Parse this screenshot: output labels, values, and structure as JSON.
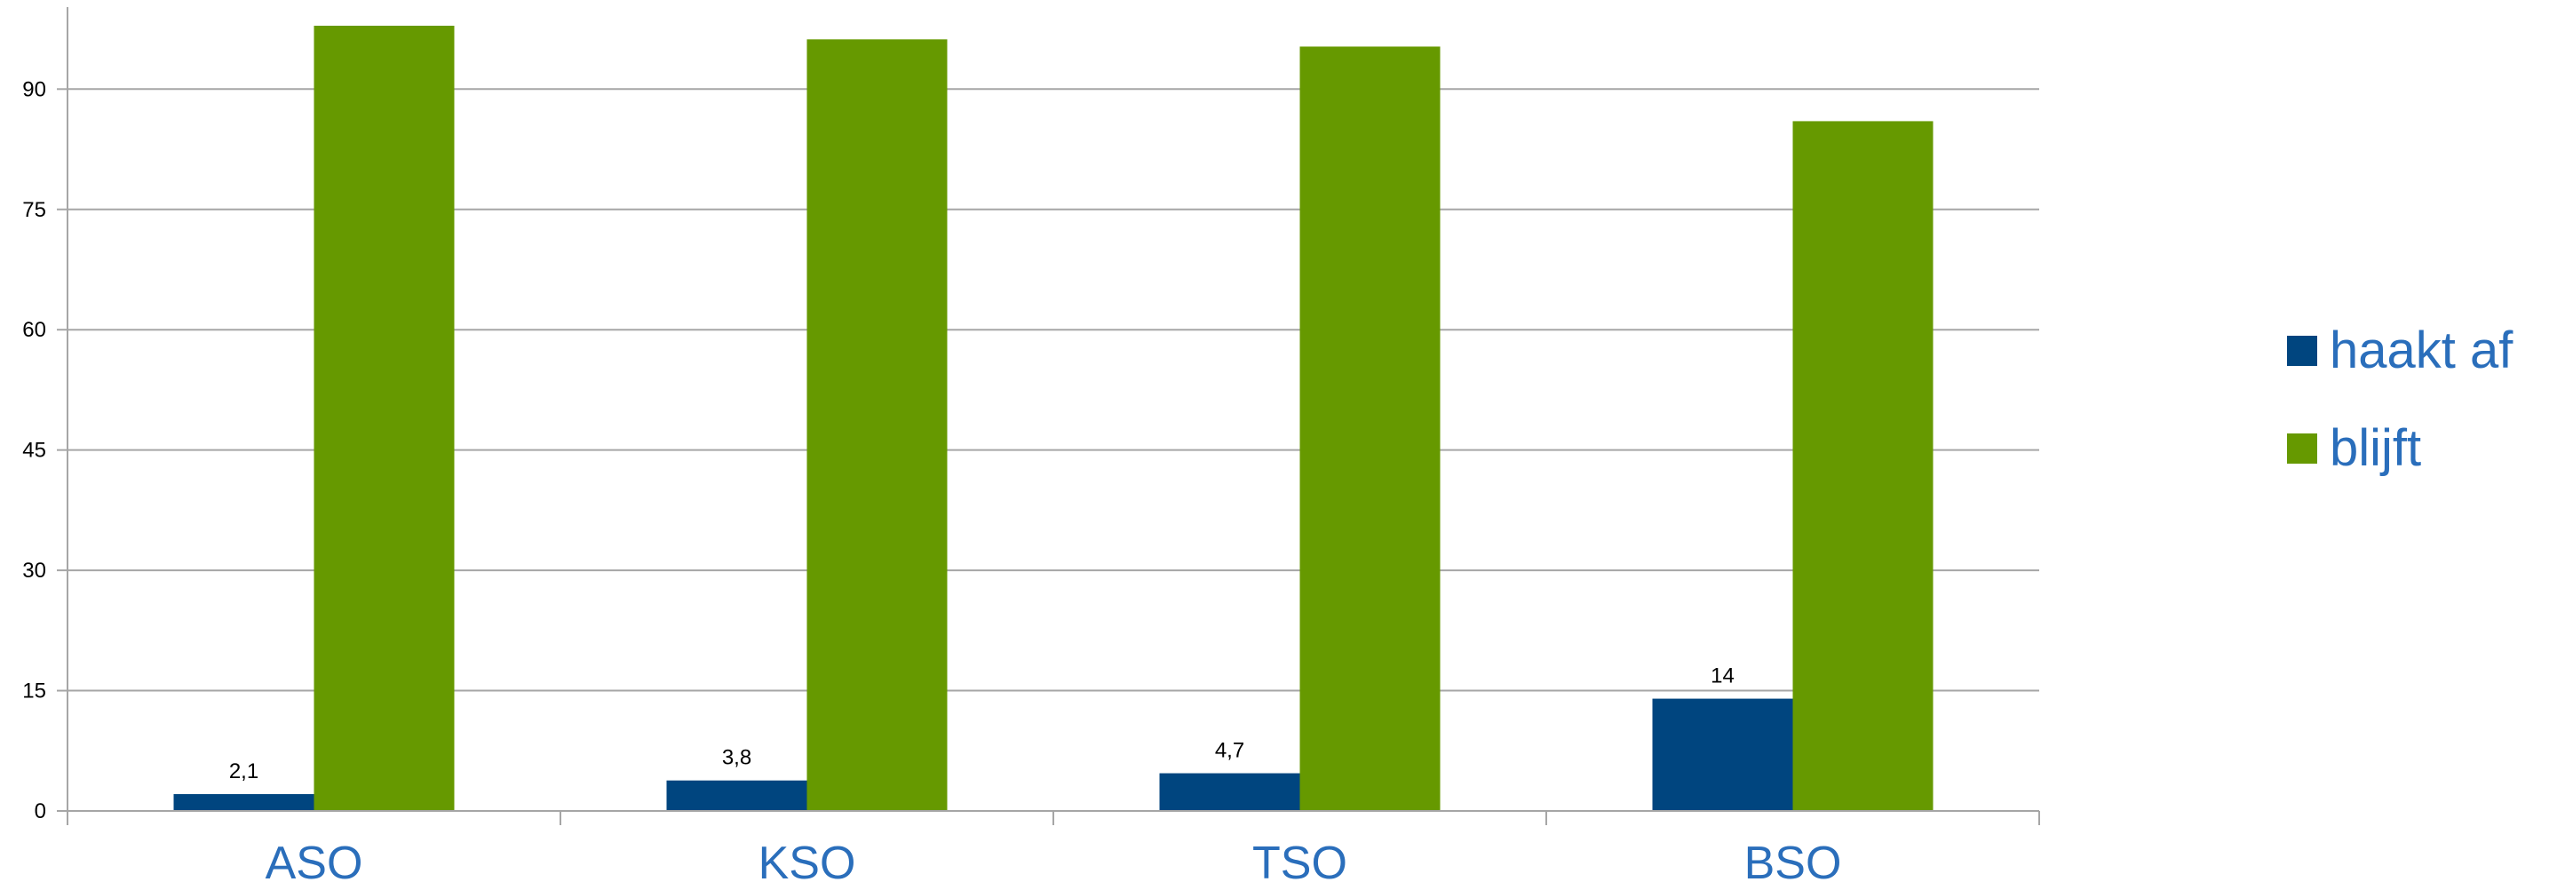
{
  "chart_data": {
    "type": "bar",
    "categories": [
      "ASO",
      "KSO",
      "TSO",
      "BSO"
    ],
    "series": [
      {
        "name": "haakt af",
        "values": [
          2.1,
          3.8,
          4.7,
          14
        ],
        "data_labels": [
          "2,1",
          "3,8",
          "4,7",
          "14"
        ],
        "color": "#00457f"
      },
      {
        "name": "blijft",
        "values": [
          97.9,
          96.2,
          95.3,
          86
        ],
        "color": "#669900"
      }
    ],
    "title": "",
    "xlabel": "",
    "ylabel": "",
    "ylim": [
      0,
      100
    ],
    "yticks": [
      0,
      15,
      30,
      45,
      60,
      75,
      90
    ],
    "grid": true,
    "legend": "right",
    "colors": {
      "category_text": "#2a6ebb",
      "legend_text": "#2a6ebb",
      "gridline": "#a6a6a6",
      "axis": "#a6a6a6"
    }
  }
}
